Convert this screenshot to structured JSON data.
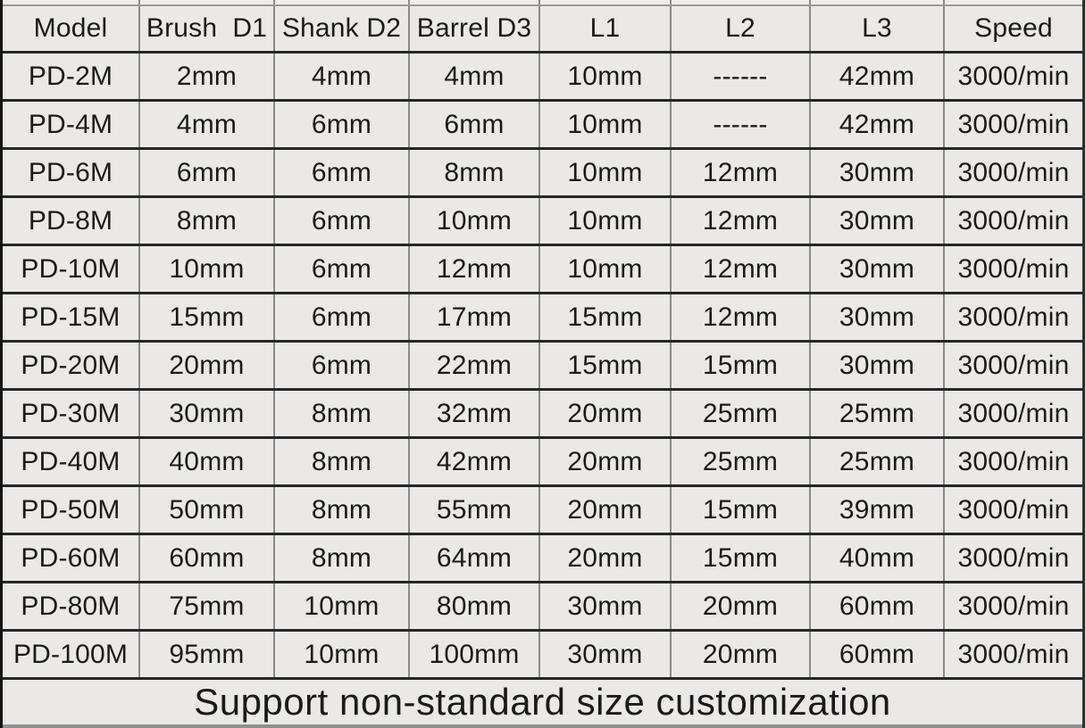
{
  "chart_data": {
    "type": "table",
    "columns": [
      "Model",
      "Brush  D1",
      "Shank D2",
      "Barrel D3",
      "L1",
      "L2",
      "L3",
      "Speed"
    ],
    "rows": [
      [
        "PD-2M",
        "2mm",
        "4mm",
        "4mm",
        "10mm",
        "------",
        "42mm",
        "3000/min"
      ],
      [
        "PD-4M",
        "4mm",
        "6mm",
        "6mm",
        "10mm",
        "------",
        "42mm",
        "3000/min"
      ],
      [
        "PD-6M",
        "6mm",
        "6mm",
        "8mm",
        "10mm",
        "12mm",
        "30mm",
        "3000/min"
      ],
      [
        "PD-8M",
        "8mm",
        "6mm",
        "10mm",
        "10mm",
        "12mm",
        "30mm",
        "3000/min"
      ],
      [
        "PD-10M",
        "10mm",
        "6mm",
        "12mm",
        "10mm",
        "12mm",
        "30mm",
        "3000/min"
      ],
      [
        "PD-15M",
        "15mm",
        "6mm",
        "17mm",
        "15mm",
        "12mm",
        "30mm",
        "3000/min"
      ],
      [
        "PD-20M",
        "20mm",
        "6mm",
        "22mm",
        "15mm",
        "15mm",
        "30mm",
        "3000/min"
      ],
      [
        "PD-30M",
        "30mm",
        "8mm",
        "32mm",
        "20mm",
        "25mm",
        "25mm",
        "3000/min"
      ],
      [
        "PD-40M",
        "40mm",
        "8mm",
        "42mm",
        "20mm",
        "25mm",
        "25mm",
        "3000/min"
      ],
      [
        "PD-50M",
        "50mm",
        "8mm",
        "55mm",
        "20mm",
        "15mm",
        "39mm",
        "3000/min"
      ],
      [
        "PD-60M",
        "60mm",
        "8mm",
        "64mm",
        "20mm",
        "15mm",
        "40mm",
        "3000/min"
      ],
      [
        "PD-80M",
        "75mm",
        "10mm",
        "80mm",
        "30mm",
        "20mm",
        "60mm",
        "3000/min"
      ],
      [
        "PD-100M",
        "95mm",
        "10mm",
        "100mm",
        "30mm",
        "20mm",
        "60mm",
        "3000/min"
      ]
    ],
    "footer": "Support non-standard size customization",
    "layout_hints": {
      "grid": "on",
      "row_separator_color": "#262626",
      "column_separator_color": "#8a8a8a",
      "cell_background": "#eae9e7",
      "text_color": "#1a1a1a"
    }
  }
}
